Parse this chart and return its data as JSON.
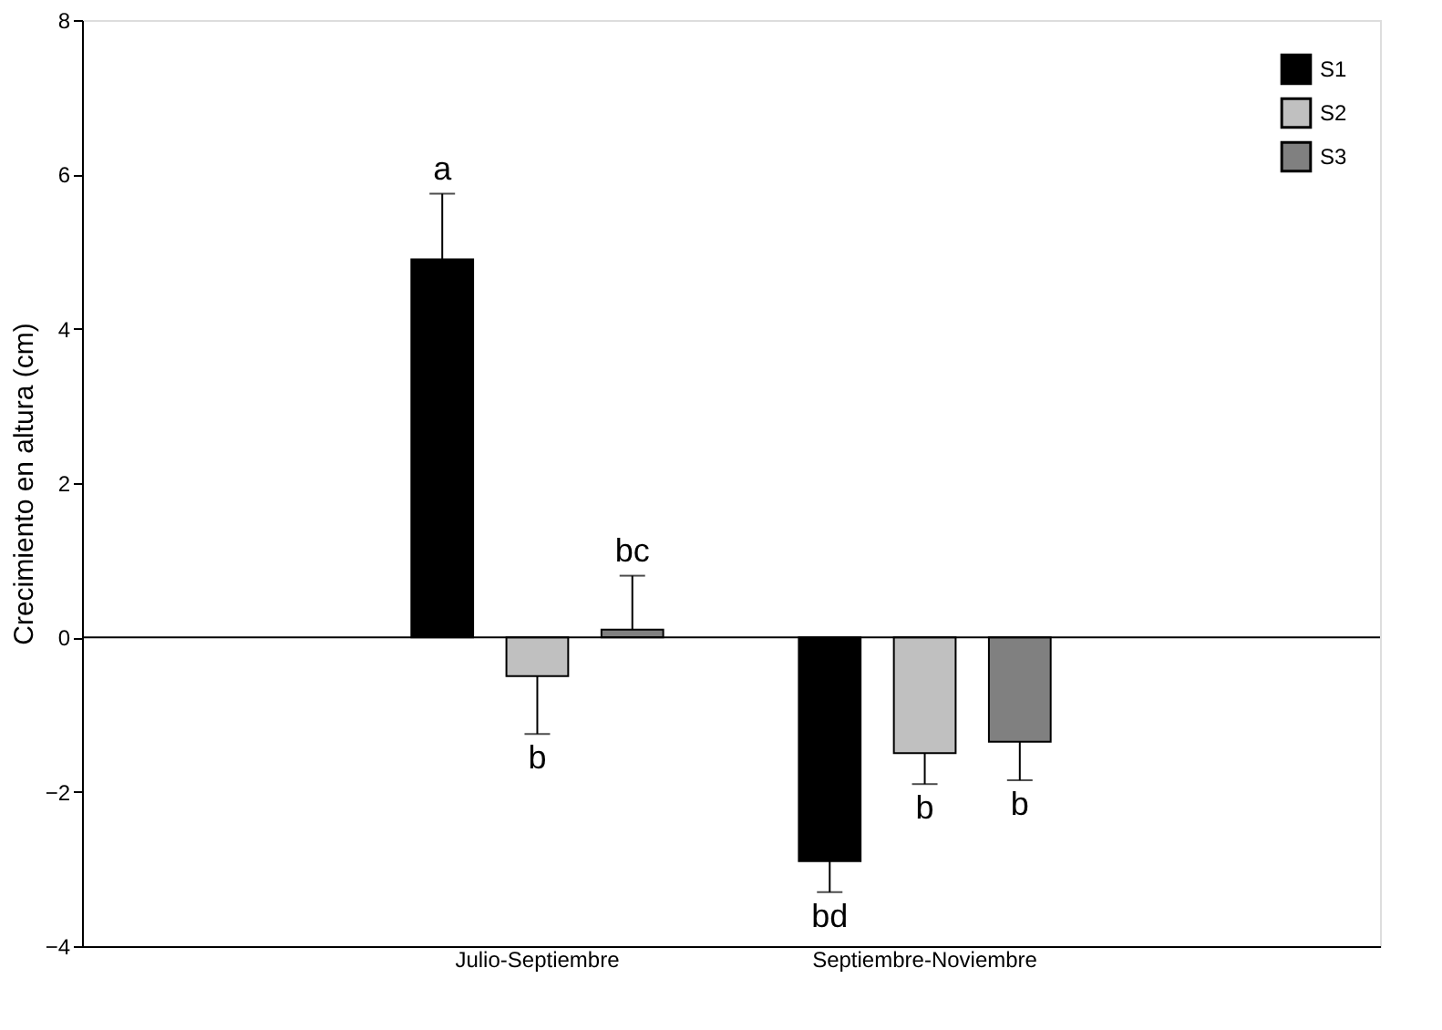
{
  "chart_data": {
    "type": "bar",
    "ylabel": "Crecimiento en altura (cm)",
    "categories": [
      "Julio-Septiembre",
      "Septiembre-Noviembre"
    ],
    "series": [
      {
        "name": "S1",
        "color": "#000000",
        "values": [
          4.9,
          -2.9
        ],
        "errors": [
          [
            4.9,
            5.75
          ],
          [
            -3.3,
            -2.9
          ]
        ]
      },
      {
        "name": "S2",
        "color": "#c0c0c0",
        "values": [
          -0.5,
          -1.5
        ],
        "errors": [
          [
            -1.25,
            -0.5
          ],
          [
            -1.9,
            -1.5
          ]
        ]
      },
      {
        "name": "S3",
        "color": "#808080",
        "values": [
          0.1,
          -1.35
        ],
        "errors": [
          [
            0.1,
            0.8
          ],
          [
            -1.85,
            -1.35
          ]
        ]
      }
    ],
    "ylim": [
      -4,
      8
    ],
    "yticks": [
      -4,
      -2,
      0,
      2,
      4,
      6,
      8
    ],
    "ref_lines": [
      {
        "axis": "y",
        "value": 0,
        "color": "#000000"
      }
    ],
    "annotations": [
      "a",
      "b",
      "bc",
      "bd",
      "b",
      "b"
    ],
    "legend": "top right",
    "grid": false
  }
}
